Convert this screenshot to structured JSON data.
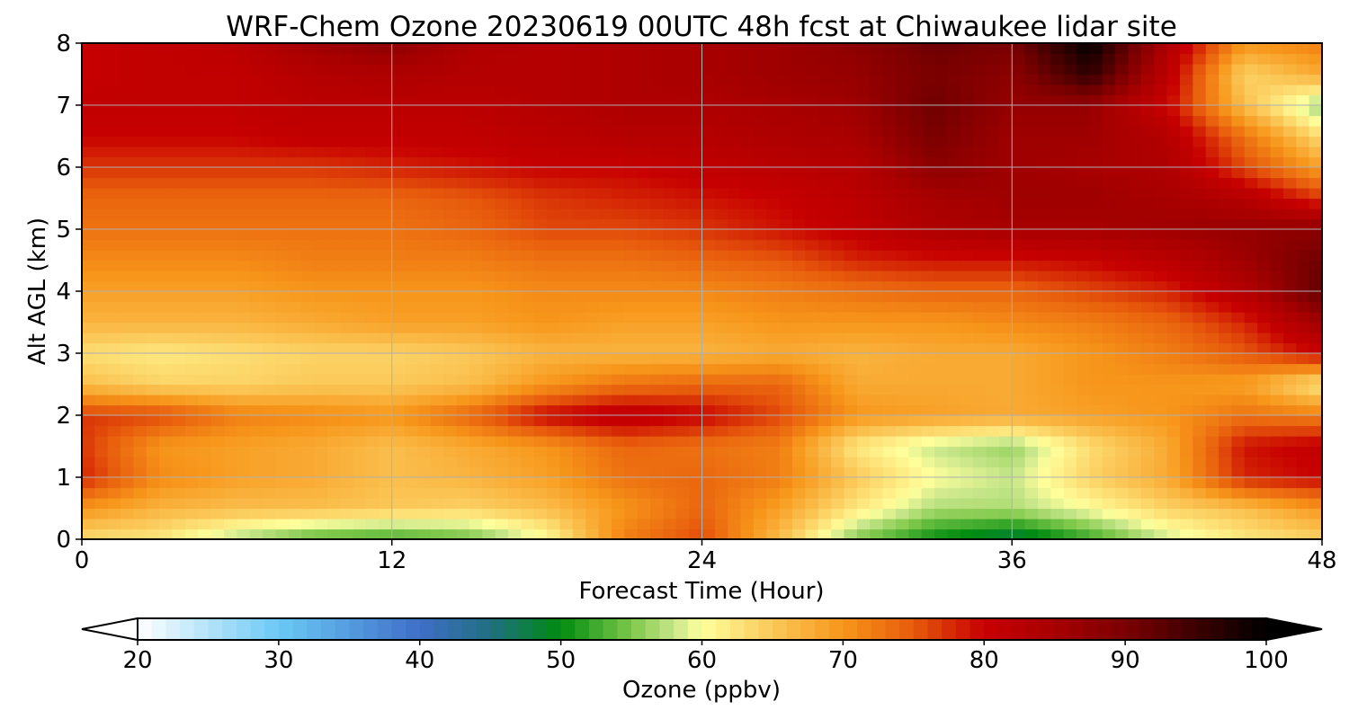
{
  "chart_data": {
    "type": "heatmap",
    "title": "WRF-Chem Ozone  20230619 00UTC 48h fcst at Chiwaukee lidar site",
    "xlabel": "Forecast Time (Hour)",
    "ylabel": "Alt AGL (km)",
    "xlim": [
      0,
      48
    ],
    "ylim": [
      0,
      8
    ],
    "x_ticks": [
      0,
      12,
      24,
      36,
      48
    ],
    "y_ticks": [
      0,
      1,
      2,
      3,
      4,
      5,
      6,
      7,
      8
    ],
    "x_tick_labels": [
      "0",
      "12",
      "24",
      "36",
      "48"
    ],
    "y_tick_labels": [
      "0",
      "1",
      "2",
      "3",
      "4",
      "5",
      "6",
      "7",
      "8"
    ],
    "grid": true,
    "x": [
      0,
      3,
      6,
      9,
      12,
      15,
      18,
      21,
      24,
      27,
      30,
      33,
      36,
      39,
      42,
      45,
      48
    ],
    "y": [
      0,
      0.5,
      1,
      1.5,
      2,
      2.5,
      3,
      3.5,
      4,
      4.5,
      5,
      5.5,
      6,
      6.5,
      7,
      7.5,
      8
    ],
    "z": [
      [
        63,
        62,
        57,
        53,
        52,
        54,
        60,
        72,
        76,
        66,
        55,
        50,
        47,
        52,
        58,
        62,
        64
      ],
      [
        70,
        67,
        66,
        66,
        65,
        64,
        66,
        70,
        74,
        69,
        62,
        57,
        57,
        60,
        64,
        66,
        70
      ],
      [
        78,
        71,
        69,
        68,
        66,
        67,
        69,
        73,
        74,
        72,
        65,
        60,
        58,
        64,
        68,
        78,
        80
      ],
      [
        77,
        70,
        69,
        68,
        66,
        68,
        70,
        74,
        73,
        72,
        62,
        58,
        56,
        63,
        68,
        79,
        81
      ],
      [
        77,
        76,
        72,
        71,
        70,
        74,
        80,
        82,
        80,
        76,
        70,
        69,
        68,
        69,
        70,
        73,
        72
      ],
      [
        66,
        64,
        64,
        65,
        65,
        66,
        70,
        73,
        74,
        74,
        68,
        68,
        68,
        70,
        70,
        69,
        62
      ],
      [
        63,
        62,
        63,
        64,
        64,
        65,
        67,
        67,
        67,
        68,
        67,
        68,
        68,
        70,
        72,
        75,
        80
      ],
      [
        67,
        67,
        67,
        68,
        69,
        69,
        70,
        69,
        69,
        70,
        70,
        70,
        71,
        72,
        74,
        78,
        86
      ],
      [
        69,
        69,
        69,
        70,
        70,
        70,
        71,
        71,
        71,
        72,
        73,
        74,
        74,
        76,
        78,
        83,
        92
      ],
      [
        71,
        71,
        71,
        72,
        72,
        72,
        73,
        73,
        74,
        75,
        78,
        79,
        79,
        80,
        82,
        86,
        91
      ],
      [
        73,
        73,
        73,
        73,
        73,
        74,
        76,
        76,
        77,
        79,
        81,
        84,
        85,
        85,
        86,
        87,
        88
      ],
      [
        74,
        74,
        74,
        74,
        74,
        75,
        77,
        78,
        79,
        80,
        82,
        85,
        86,
        86,
        85,
        83,
        77
      ],
      [
        77,
        77,
        77,
        77,
        78,
        79,
        80,
        80,
        81,
        82,
        83,
        88,
        86,
        85,
        84,
        76,
        69
      ],
      [
        80,
        80,
        80,
        81,
        81,
        81,
        82,
        83,
        83,
        84,
        85,
        90,
        86,
        86,
        83,
        73,
        63
      ],
      [
        81,
        81,
        81,
        82,
        82,
        82,
        83,
        84,
        84,
        85,
        86,
        91,
        87,
        87,
        80,
        66,
        56
      ],
      [
        80,
        81,
        81,
        83,
        84,
        83,
        83,
        84,
        85,
        86,
        87,
        90,
        88,
        96,
        82,
        64,
        68
      ],
      [
        80,
        81,
        82,
        86,
        88,
        84,
        83,
        84,
        85,
        86,
        88,
        91,
        90,
        100,
        84,
        70,
        72
      ]
    ],
    "colorbar": {
      "label": "Ozone  (ppbv)",
      "min": 20,
      "max": 100,
      "ticks": [
        20,
        30,
        40,
        50,
        60,
        70,
        80,
        90,
        100
      ],
      "tick_labels": [
        "20",
        "30",
        "40",
        "50",
        "60",
        "70",
        "80",
        "90",
        "100"
      ],
      "extend": "both",
      "colors": [
        {
          "v": 20,
          "c": "#ffffff"
        },
        {
          "v": 30,
          "c": "#6ac8f5"
        },
        {
          "v": 40,
          "c": "#3f6fc8"
        },
        {
          "v": 45,
          "c": "#1f6f80"
        },
        {
          "v": 50,
          "c": "#008c10"
        },
        {
          "v": 55,
          "c": "#7ec84a"
        },
        {
          "v": 58,
          "c": "#c7e68a"
        },
        {
          "v": 60,
          "c": "#ffff9c"
        },
        {
          "v": 65,
          "c": "#fbc858"
        },
        {
          "v": 70,
          "c": "#f7961a"
        },
        {
          "v": 75,
          "c": "#e75a0c"
        },
        {
          "v": 80,
          "c": "#c70000"
        },
        {
          "v": 85,
          "c": "#a80000"
        },
        {
          "v": 90,
          "c": "#7a0000"
        },
        {
          "v": 100,
          "c": "#000000"
        }
      ]
    }
  }
}
